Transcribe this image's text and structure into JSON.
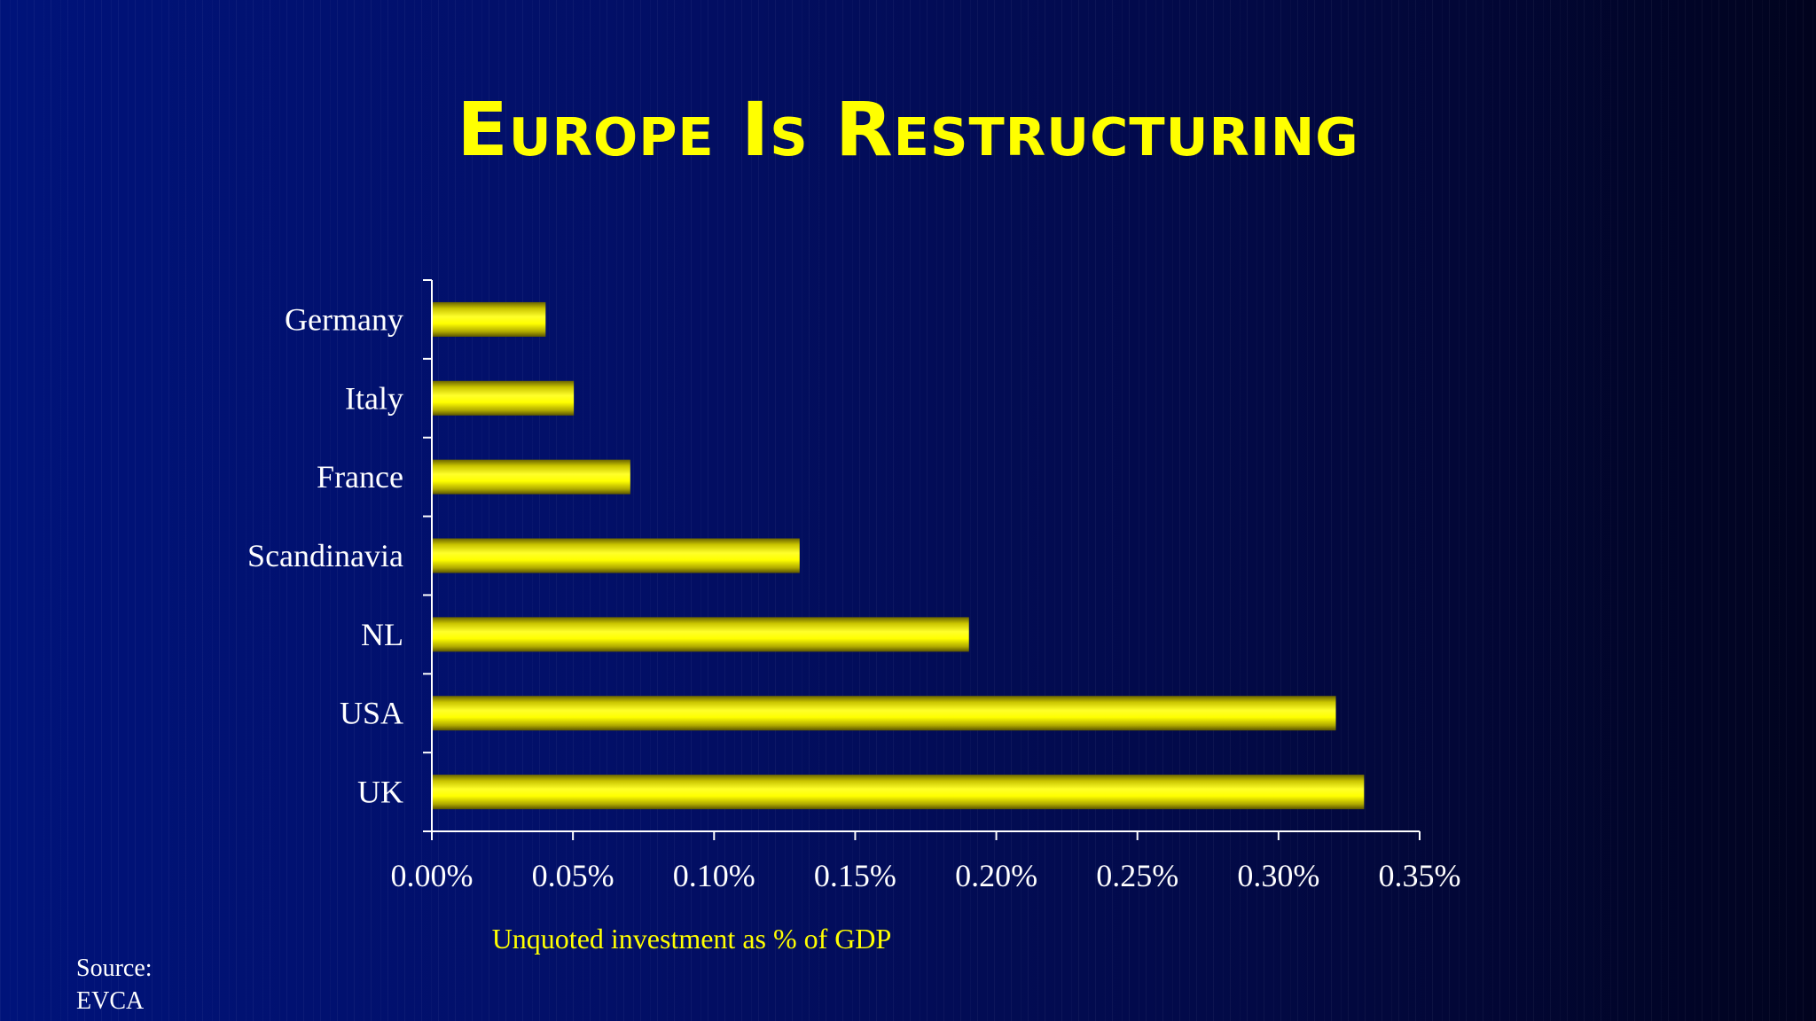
{
  "slide": {
    "title": "Europe Is Restructuring",
    "source_label": "Source:",
    "source_name": "EVCA"
  },
  "colors": {
    "background_left": "#00137a",
    "background_right": "#01031e",
    "bar": "#ffff00",
    "title": "#ffff00",
    "text": "#ffffff"
  },
  "chart_data": {
    "type": "bar",
    "orientation": "horizontal",
    "categories": [
      "Germany",
      "Italy",
      "France",
      "Scandinavia",
      "NL",
      "USA",
      "UK"
    ],
    "values": [
      0.0004,
      0.0005,
      0.0007,
      0.0013,
      0.0019,
      0.0032,
      0.0033
    ],
    "xlim": [
      0,
      0.0035
    ],
    "xticks": [
      0,
      0.0005,
      0.001,
      0.0015,
      0.002,
      0.0025,
      0.003,
      0.0035
    ],
    "xtick_labels": [
      "0.00%",
      "0.05%",
      "0.10%",
      "0.15%",
      "0.20%",
      "0.25%",
      "0.30%",
      "0.35%"
    ],
    "xlabel": "Unquoted investment as % of GDP",
    "ylabel": "",
    "grid": false,
    "legend": "none"
  }
}
